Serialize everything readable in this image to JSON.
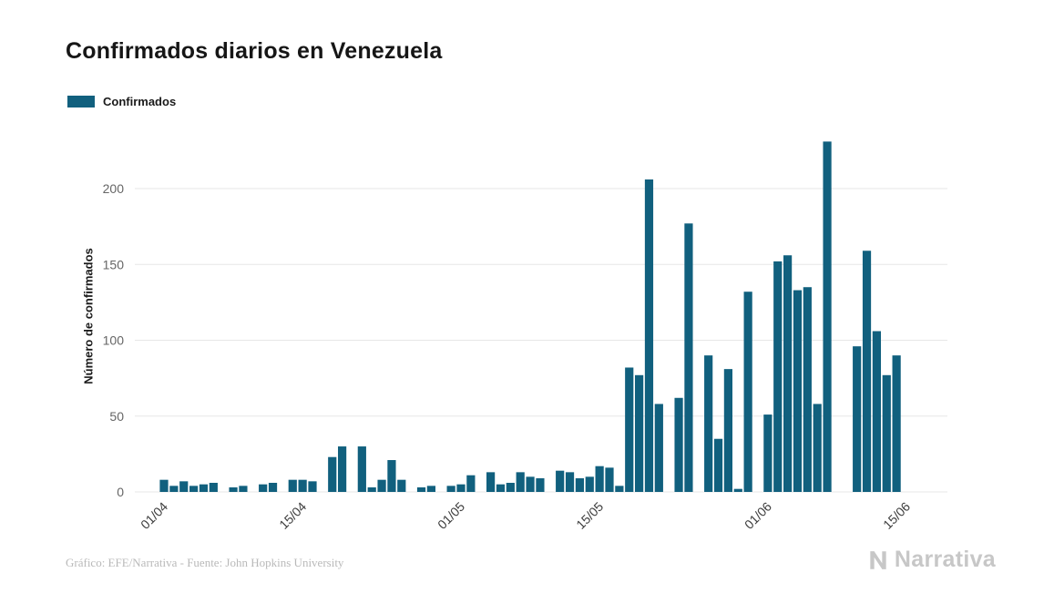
{
  "title": "Confirmados diarios en Venezuela",
  "legend": {
    "label": "Confirmados"
  },
  "footer": {
    "credit": "Gráfico: EFE/Narrativa - Fuente: John Hopkins University"
  },
  "brand": {
    "name": "Narrativa"
  },
  "chart_data": {
    "type": "bar",
    "title": "Confirmados diarios en Venezuela",
    "xlabel": "",
    "ylabel": "Número de confirmados",
    "ylim": [
      0,
      235
    ],
    "grid": true,
    "legend_position": "top-left",
    "legend_entries": [
      "Confirmados"
    ],
    "bar_color": "#11607e",
    "grid_color": "#e7e7e7",
    "yticks": [
      0,
      50,
      100,
      150,
      200
    ],
    "xticks": [
      {
        "label": "01/04",
        "index": 0
      },
      {
        "label": "15/04",
        "index": 14
      },
      {
        "label": "01/05",
        "index": 30
      },
      {
        "label": "15/05",
        "index": 44
      },
      {
        "label": "01/06",
        "index": 61
      },
      {
        "label": "15/06",
        "index": 75
      }
    ],
    "x": [
      "01/04",
      "02/04",
      "03/04",
      "04/04",
      "05/04",
      "06/04",
      "07/04",
      "08/04",
      "09/04",
      "10/04",
      "11/04",
      "12/04",
      "13/04",
      "14/04",
      "15/04",
      "16/04",
      "17/04",
      "18/04",
      "19/04",
      "20/04",
      "21/04",
      "22/04",
      "23/04",
      "24/04",
      "25/04",
      "26/04",
      "27/04",
      "28/04",
      "29/04",
      "30/04",
      "01/05",
      "02/05",
      "03/05",
      "04/05",
      "05/05",
      "06/05",
      "07/05",
      "08/05",
      "09/05",
      "10/05",
      "11/05",
      "12/05",
      "13/05",
      "14/05",
      "15/05",
      "16/05",
      "17/05",
      "18/05",
      "19/05",
      "20/05",
      "21/05",
      "22/05",
      "23/05",
      "24/05",
      "25/05",
      "26/05",
      "27/05",
      "28/05",
      "29/05",
      "30/05",
      "31/05",
      "01/06",
      "02/06",
      "03/06",
      "04/06",
      "05/06",
      "06/06",
      "07/06",
      "08/06",
      "09/06",
      "10/06",
      "11/06",
      "12/06",
      "13/06",
      "14/06",
      "15/06"
    ],
    "values": [
      8,
      4,
      7,
      4,
      5,
      6,
      0,
      3,
      4,
      0,
      5,
      6,
      0,
      8,
      8,
      7,
      0,
      23,
      30,
      0,
      30,
      3,
      8,
      21,
      8,
      0,
      3,
      4,
      0,
      4,
      5,
      11,
      0,
      13,
      5,
      6,
      13,
      10,
      9,
      0,
      14,
      13,
      9,
      10,
      17,
      16,
      4,
      82,
      77,
      206,
      58,
      0,
      62,
      177,
      0,
      90,
      35,
      81,
      2,
      132,
      0,
      51,
      152,
      156,
      133,
      135,
      58,
      231,
      0,
      0,
      96,
      159,
      106,
      77,
      90,
      0
    ]
  }
}
